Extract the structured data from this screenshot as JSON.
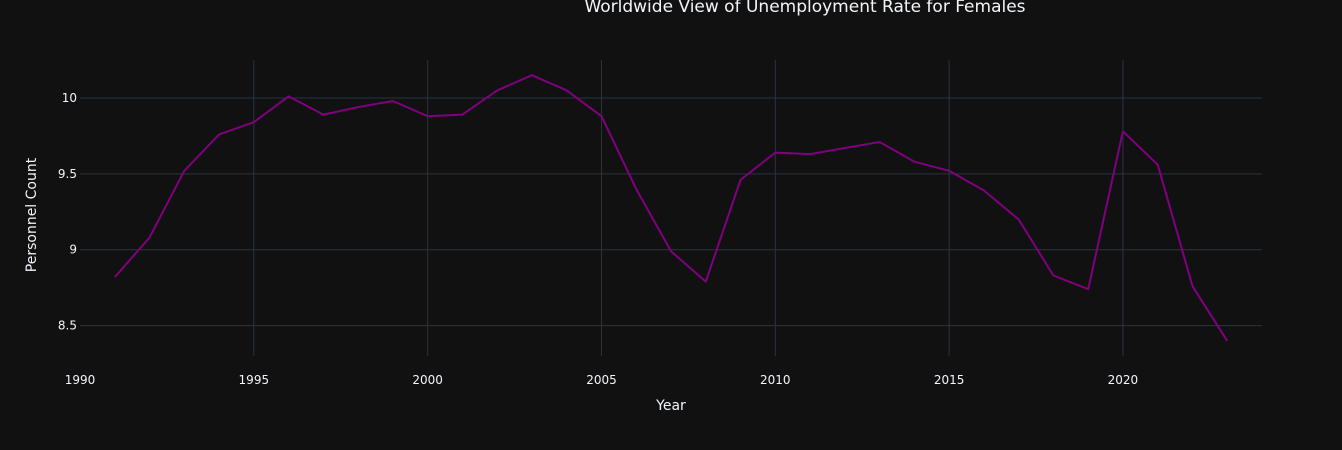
{
  "chart_data": {
    "type": "line",
    "title": "Worldwide View of Unemployment Rate for Females",
    "xlabel": "Year",
    "ylabel": "Personnel Count",
    "xlim": [
      1990,
      2024
    ],
    "ylim": [
      8.3,
      10.25
    ],
    "x_ticks": [
      1990,
      1995,
      2000,
      2005,
      2010,
      2015,
      2020
    ],
    "y_ticks": [
      8.5,
      9,
      9.5,
      10
    ],
    "grid": true,
    "colors": {
      "background": "#111111",
      "grid": "#283442",
      "text": "#f2f5fa",
      "line": "#800080"
    },
    "x": [
      1991,
      1992,
      1993,
      1994,
      1995,
      1996,
      1997,
      1998,
      1999,
      2000,
      2001,
      2002,
      2003,
      2004,
      2005,
      2006,
      2007,
      2008,
      2009,
      2010,
      2011,
      2012,
      2013,
      2014,
      2015,
      2016,
      2017,
      2018,
      2019,
      2020,
      2021,
      2022,
      2023
    ],
    "series": [
      {
        "values": [
          8.82,
          9.08,
          9.52,
          9.76,
          9.84,
          10.01,
          9.89,
          9.94,
          9.98,
          9.88,
          9.89,
          10.05,
          10.15,
          10.05,
          9.88,
          9.4,
          8.99,
          8.79,
          9.46,
          9.64,
          9.63,
          9.67,
          9.71,
          9.58,
          9.52,
          9.39,
          9.2,
          8.83,
          8.74,
          9.78,
          9.56,
          8.76,
          8.4
        ]
      }
    ]
  }
}
